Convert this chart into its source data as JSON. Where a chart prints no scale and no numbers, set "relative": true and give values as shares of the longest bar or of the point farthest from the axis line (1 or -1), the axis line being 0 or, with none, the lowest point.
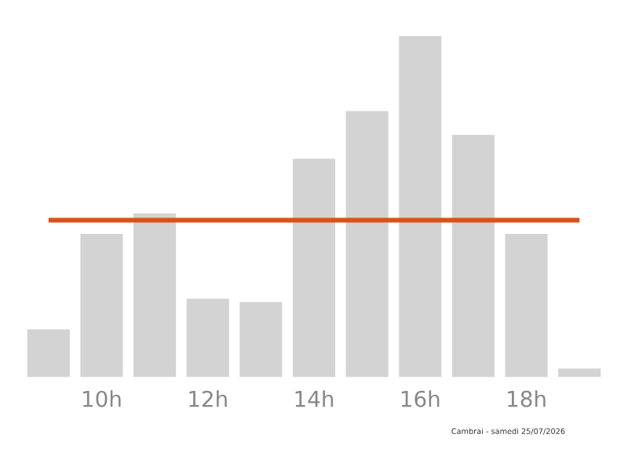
{
  "chart_data": {
    "type": "bar",
    "relative": true,
    "categories": [
      null,
      "10h",
      null,
      "12h",
      null,
      "14h",
      null,
      "16h",
      null,
      "18h",
      null
    ],
    "values": [
      0.14,
      0.42,
      0.48,
      0.23,
      0.22,
      0.64,
      0.78,
      1.0,
      0.71,
      0.42,
      0.025
    ],
    "color": "#d3d3d3",
    "ref_lines": [
      {
        "axis": "y",
        "value": 0.46,
        "color": "#d95319"
      }
    ],
    "annotations": [
      "Cambrai - samedi 25/07/2026"
    ],
    "grid": false,
    "legend": false
  }
}
